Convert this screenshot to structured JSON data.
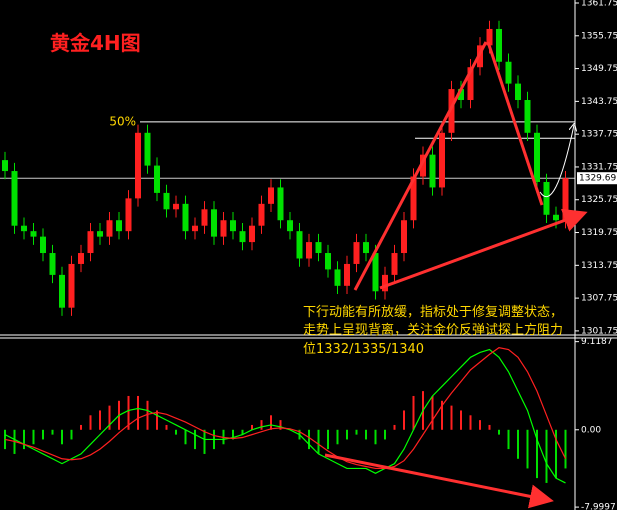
{
  "chart_data": {
    "type": "candlestick",
    "title": "黄金4H图",
    "annotation": [
      "下行动能有所放缓，指标处于修复调整状态，",
      "走势上呈现背离，关注金价反弹试探上方阻力",
      "位1332/1335/1340"
    ],
    "open": [
      1333,
      1331,
      1321,
      1320,
      1319,
      1316,
      1312,
      1306,
      1314,
      1316,
      1320,
      1319,
      1322,
      1320,
      1326,
      1338,
      1332,
      1327,
      1324,
      1325,
      1320,
      1321,
      1324,
      1319,
      1322,
      1320,
      1318,
      1321,
      1325,
      1328,
      1322,
      1320,
      1315,
      1318,
      1316,
      1313,
      1310,
      1314,
      1318,
      1316,
      1309,
      1312,
      1316,
      1322,
      1330,
      1334,
      1328,
      1338,
      1346,
      1344,
      1350,
      1354,
      1357,
      1351,
      1347,
      1344,
      1338,
      1329,
      1323,
      1322
    ],
    "high": [
      1334.5,
      1332.5,
      1322.5,
      1321.5,
      1320.5,
      1317.5,
      1313.5,
      1315.5,
      1317.5,
      1321.5,
      1321.5,
      1323.5,
      1323.5,
      1327.5,
      1339.5,
      1339.5,
      1333.5,
      1328.5,
      1326.5,
      1326.5,
      1322.5,
      1325.5,
      1325.5,
      1323.5,
      1323.5,
      1321.5,
      1322.5,
      1326.5,
      1329.5,
      1329.5,
      1323.5,
      1321.5,
      1319.5,
      1319.5,
      1317.5,
      1314.5,
      1315.5,
      1319.5,
      1319.5,
      1317.5,
      1313.5,
      1317.5,
      1323.5,
      1331.5,
      1335.5,
      1335.5,
      1339.5,
      1347.5,
      1347.5,
      1351.5,
      1355.5,
      1358.5,
      1358.5,
      1352.5,
      1348.5,
      1345.5,
      1339.5,
      1330.5,
      1324.5,
      1331
    ],
    "low": [
      1329.5,
      1319.5,
      1318.5,
      1317.5,
      1314.5,
      1310.5,
      1304.5,
      1304.5,
      1312.5,
      1314.5,
      1317.5,
      1317.5,
      1318.5,
      1318.5,
      1324.5,
      1330.5,
      1325.5,
      1322.5,
      1322.5,
      1318.5,
      1318.5,
      1319.5,
      1317.5,
      1317.5,
      1318.5,
      1316.5,
      1316.5,
      1319.5,
      1323.5,
      1320.5,
      1318.5,
      1313.5,
      1313.5,
      1314.5,
      1311.5,
      1308.5,
      1308.5,
      1312.5,
      1314.5,
      1307.5,
      1307.5,
      1310.5,
      1314.5,
      1320.5,
      1328.5,
      1326.5,
      1326.5,
      1336.5,
      1342.5,
      1342.5,
      1348.5,
      1352.5,
      1349.5,
      1345.5,
      1342.5,
      1336.5,
      1327.5,
      1321.5,
      1320.5,
      1320.5
    ],
    "close": [
      1331,
      1321,
      1320,
      1319,
      1316,
      1312,
      1306,
      1314,
      1316,
      1320,
      1319,
      1322,
      1320,
      1326,
      1338,
      1332,
      1327,
      1324,
      1325,
      1320,
      1321,
      1324,
      1319,
      1322,
      1320,
      1318,
      1321,
      1325,
      1328,
      1322,
      1320,
      1315,
      1318,
      1316,
      1313,
      1310,
      1314,
      1318,
      1316,
      1309,
      1312,
      1316,
      1322,
      1330,
      1334,
      1328,
      1338,
      1346,
      1344,
      1350,
      1354,
      1357,
      1351,
      1347,
      1344,
      1338,
      1329,
      1323,
      1322,
      1329.69
    ],
    "up_color": "#ff2020",
    "down_color": "#00e000",
    "ylim": [
      1301,
      1362.3
    ],
    "yticks": [
      1361.75,
      1355.75,
      1349.75,
      1343.75,
      1337.75,
      1331.75,
      1325.75,
      1319.75,
      1313.75,
      1307.75,
      1301.75
    ],
    "current_price": 1329.69,
    "levels": [
      {
        "value": 1340,
        "label": "50%"
      },
      {
        "value": 1337
      }
    ],
    "macd": {
      "ylim": [
        -8.3,
        9.6
      ],
      "yticks": [
        9.1187,
        {
          "value": 0,
          "label": "0.00"
        },
        -7.9997
      ],
      "histogram": [
        -2,
        -2.5,
        -2,
        -1.5,
        -1,
        -0.5,
        -1.5,
        -1,
        0.5,
        1.5,
        2,
        2.5,
        3,
        3.5,
        3.5,
        3,
        2,
        0.5,
        -0.5,
        -1.5,
        -2,
        -2.5,
        -2,
        -1.5,
        -1,
        -0.5,
        0.5,
        1,
        1.5,
        1,
        0,
        -1,
        -2,
        -2.5,
        -2,
        -1.5,
        -1,
        -0.5,
        -1,
        -1.5,
        -1,
        0.5,
        2,
        3.5,
        4,
        3.5,
        3,
        2.5,
        2,
        1.5,
        1,
        0.5,
        -0.5,
        -2,
        -3,
        -4,
        -5,
        -5.5,
        -5,
        -4
      ],
      "series": [
        {
          "color": "#00ff00",
          "values": [
            -0.5,
            -1,
            -1.5,
            -2,
            -2.5,
            -3,
            -3.5,
            -3,
            -2.5,
            -1.5,
            -0.5,
            0.5,
            1.5,
            2,
            2.2,
            2,
            1.5,
            1,
            0.5,
            0,
            -0.5,
            -1,
            -1,
            -1,
            -0.8,
            -0.5,
            0,
            0.3,
            0.5,
            0.3,
            0,
            -0.5,
            -1.5,
            -2.5,
            -3,
            -3.5,
            -4,
            -4,
            -4,
            -4.5,
            -4,
            -3.5,
            -2,
            0,
            2,
            3.5,
            4.5,
            5.5,
            6.5,
            7.5,
            8,
            8.3,
            7.5,
            6,
            4,
            2,
            -1,
            -3.5,
            -5,
            -5.5
          ]
        },
        {
          "color": "#ff2020",
          "values": [
            -1,
            -1.2,
            -1.5,
            -1.8,
            -2.2,
            -2.6,
            -3,
            -3.1,
            -3,
            -2.6,
            -2,
            -1.2,
            -0.3,
            0.5,
            1.2,
            1.6,
            1.8,
            1.6,
            1.2,
            0.8,
            0.3,
            -0.2,
            -0.6,
            -0.8,
            -0.9,
            -0.8,
            -0.5,
            -0.2,
            0.1,
            0.2,
            0.1,
            -0.2,
            -0.8,
            -1.5,
            -2.2,
            -2.8,
            -3.3,
            -3.6,
            -3.8,
            -4,
            -4,
            -3.8,
            -3.2,
            -2,
            -0.5,
            1,
            2.5,
            3.8,
            5,
            6.2,
            7,
            7.8,
            8.5,
            8.3,
            7.5,
            6,
            4,
            1.5,
            -1,
            -3
          ]
        }
      ]
    }
  }
}
